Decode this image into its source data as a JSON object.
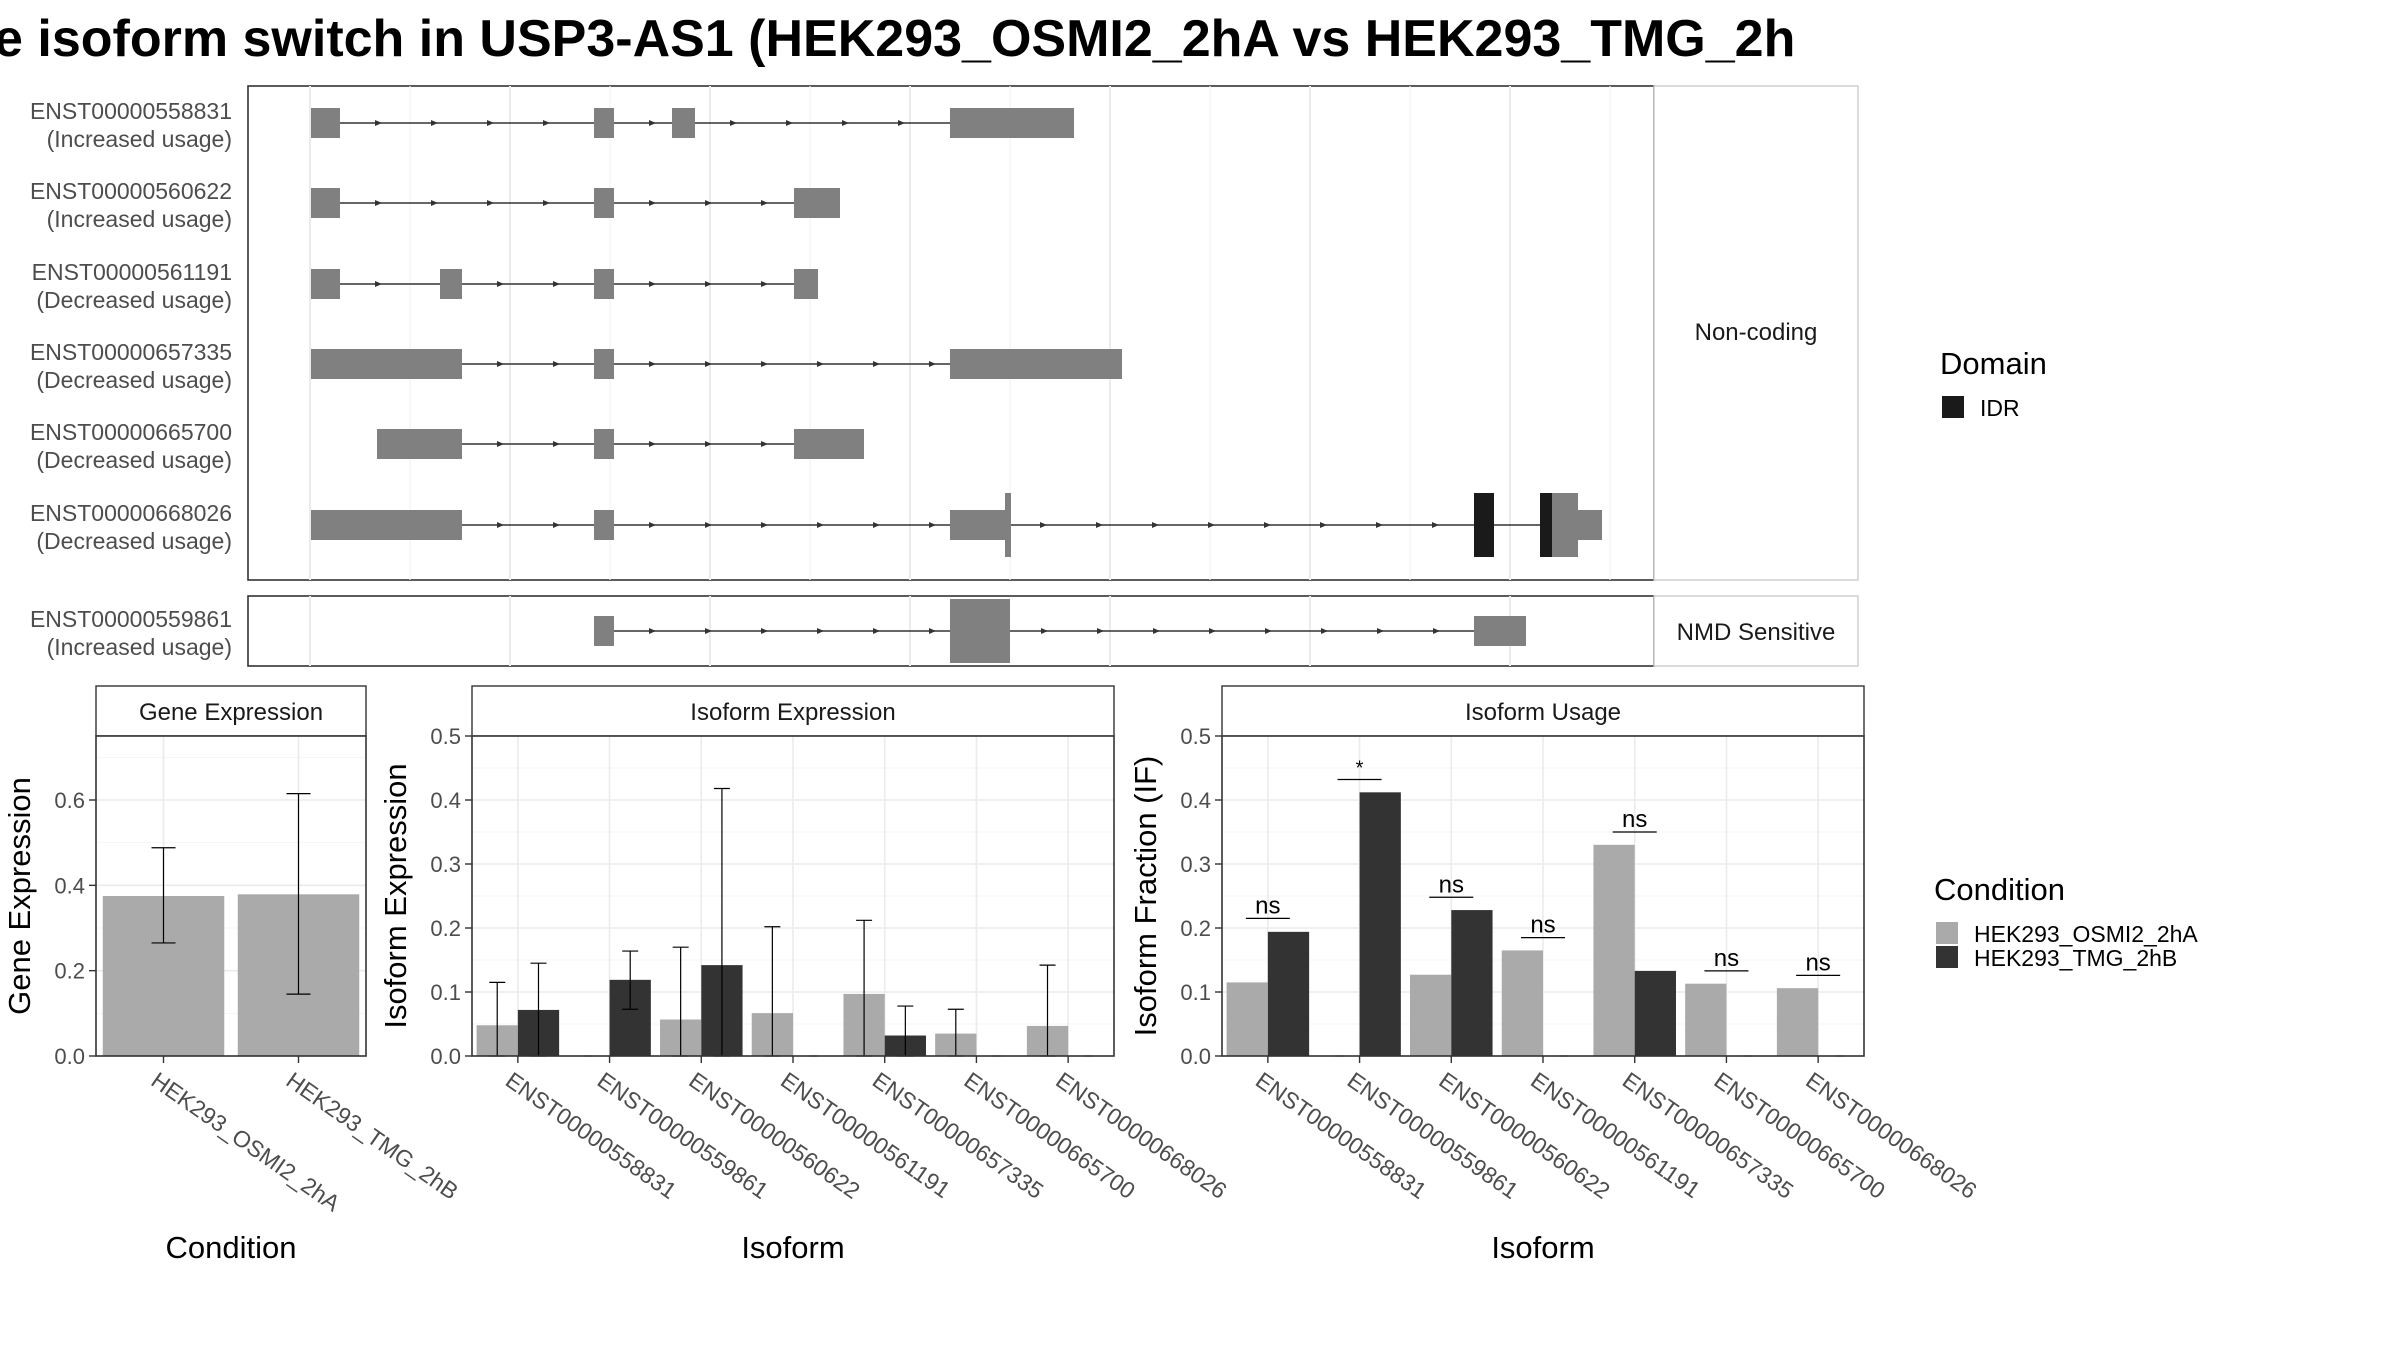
{
  "title": "e isoform switch in USP3-AS1 (HEK293_OSMI2_2hA vs HEK293_TMG_2h",
  "colors": {
    "exon": "#808080",
    "idr": "#1a1a1a",
    "condition_a": "#aaaaaa",
    "condition_b": "#333333",
    "grid": "#ebebeb",
    "frame": "#333333"
  },
  "structure": {
    "groups": [
      {
        "label": "Non-coding",
        "transcripts": [
          {
            "id": "ENST00000558831",
            "usage": "(Increased usage)"
          },
          {
            "id": "ENST00000560622",
            "usage": "(Increased usage)"
          },
          {
            "id": "ENST00000561191",
            "usage": "(Decreased usage)"
          },
          {
            "id": "ENST00000657335",
            "usage": "(Decreased usage)"
          },
          {
            "id": "ENST00000665700",
            "usage": "(Decreased usage)"
          },
          {
            "id": "ENST00000668026",
            "usage": "(Decreased usage)"
          }
        ]
      },
      {
        "label": "NMD Sensitive",
        "transcripts": [
          {
            "id": "ENST00000559861",
            "usage": "(Increased usage)"
          }
        ]
      }
    ]
  },
  "legend_domain": {
    "title": "Domain",
    "items": [
      {
        "label": "IDR",
        "color": "#1a1a1a"
      }
    ]
  },
  "legend_condition": {
    "title": "Condition",
    "items": [
      {
        "label": "HEK293_OSMI2_2hA",
        "color": "#aaaaaa"
      },
      {
        "label": "HEK293_TMG_2hB",
        "color": "#333333"
      }
    ]
  },
  "chart_data": [
    {
      "type": "bar",
      "title": "Gene Expression",
      "xlabel": "Condition",
      "ylabel": "Gene Expression",
      "categories": [
        "HEK293_OSMI2_2hA",
        "HEK293_TMG_2hB"
      ],
      "values": [
        0.375,
        0.379
      ],
      "error_low": [
        0.265,
        0.145
      ],
      "error_high": [
        0.488,
        0.615
      ],
      "ylim": [
        0,
        0.75
      ],
      "yticks": [
        "0.0",
        "0.2",
        "0.4",
        "0.6"
      ]
    },
    {
      "type": "bar",
      "title": "Isoform Expression",
      "xlabel": "Isoform",
      "ylabel": "Isoform Expression",
      "categories": [
        "ENST00000558831",
        "ENST00000559861",
        "ENST00000560622",
        "ENST00000561191",
        "ENST00000657335",
        "ENST00000665700",
        "ENST00000668026"
      ],
      "series": [
        {
          "name": "HEK293_OSMI2_2hA",
          "values": [
            0.048,
            0.0,
            0.057,
            0.067,
            0.097,
            0.035,
            0.047
          ],
          "error_low": [
            0.0,
            0.0,
            0.0,
            0.0,
            0.0,
            0.0,
            0.0
          ],
          "error_high": [
            0.115,
            0.0,
            0.17,
            0.202,
            0.212,
            0.073,
            0.142
          ]
        },
        {
          "name": "HEK293_TMG_2hB",
          "values": [
            0.072,
            0.119,
            0.142,
            0.0,
            0.032,
            0.0,
            0.0
          ],
          "error_low": [
            0.0,
            0.073,
            0.0,
            0.0,
            0.0,
            0.0,
            0.0
          ],
          "error_high": [
            0.145,
            0.164,
            0.418,
            0.0,
            0.078,
            0.0,
            0.0
          ]
        }
      ],
      "ylim": [
        0,
        0.5
      ],
      "yticks": [
        "0.0",
        "0.1",
        "0.2",
        "0.3",
        "0.4",
        "0.5"
      ]
    },
    {
      "type": "bar",
      "title": "Isoform Usage",
      "xlabel": "Isoform",
      "ylabel": "Isoform Fraction (IF)",
      "categories": [
        "ENST00000558831",
        "ENST00000559861",
        "ENST00000560622",
        "ENST00000561191",
        "ENST00000657335",
        "ENST00000665700",
        "ENST00000668026"
      ],
      "series": [
        {
          "name": "HEK293_OSMI2_2hA",
          "values": [
            0.115,
            0.0,
            0.127,
            0.165,
            0.33,
            0.113,
            0.106
          ]
        },
        {
          "name": "HEK293_TMG_2hB",
          "values": [
            0.194,
            0.412,
            0.228,
            0.0,
            0.133,
            0.0,
            0.0
          ]
        }
      ],
      "significance": [
        "ns",
        "*",
        "ns",
        "ns",
        "ns",
        "ns",
        "ns"
      ],
      "sig_y": [
        0.215,
        0.432,
        0.248,
        0.185,
        0.35,
        0.133,
        0.126
      ],
      "ylim": [
        0,
        0.5
      ],
      "yticks": [
        "0.0",
        "0.1",
        "0.2",
        "0.3",
        "0.4",
        "0.5"
      ]
    }
  ]
}
